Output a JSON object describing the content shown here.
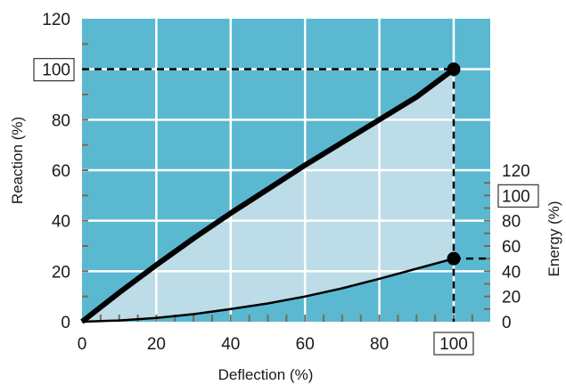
{
  "colors": {
    "plot_bg": "#5bb8d1",
    "area_fill": "#bcdce7",
    "grid": "#ffffff",
    "reaction_curve": "#000000",
    "energy_curve": "#000000",
    "axis_ticks": "#7a6a52"
  },
  "chart_data": {
    "type": "line",
    "xlabel": "Deflection (%)",
    "ylabel": "Reaction (%)",
    "y2label": "Energy (%)",
    "xlim": [
      0,
      110
    ],
    "ylim": [
      0,
      120
    ],
    "y2lim": [
      0,
      120
    ],
    "x_ticks": [
      "0",
      "20",
      "40",
      "60",
      "80",
      "100"
    ],
    "y_ticks": [
      "0",
      "20",
      "40",
      "60",
      "80",
      "100",
      "120"
    ],
    "y2_ticks": [
      "0",
      "20",
      "40",
      "60",
      "80",
      "100",
      "120"
    ],
    "x_highlight": "100",
    "y_highlight": "100",
    "y2_highlight": "100",
    "grid": true,
    "series": [
      {
        "axis": "left",
        "style": "thick",
        "x": [
          0,
          10,
          20,
          30,
          40,
          50,
          60,
          70,
          80,
          90,
          100
        ],
        "y": [
          0,
          11.5,
          22.5,
          33,
          43,
          52.5,
          62,
          71,
          80,
          89,
          100
        ]
      },
      {
        "axis": "right",
        "style": "thin",
        "x": [
          0,
          10,
          20,
          30,
          40,
          50,
          60,
          70,
          80,
          90,
          100
        ],
        "y": [
          0,
          1,
          3,
          6,
          10,
          14.5,
          20,
          26.5,
          34,
          42,
          50
        ]
      }
    ],
    "markers": [
      {
        "x": 100,
        "y": 100,
        "axis": "left"
      },
      {
        "x": 100,
        "y": 50,
        "axis": "right"
      }
    ]
  }
}
